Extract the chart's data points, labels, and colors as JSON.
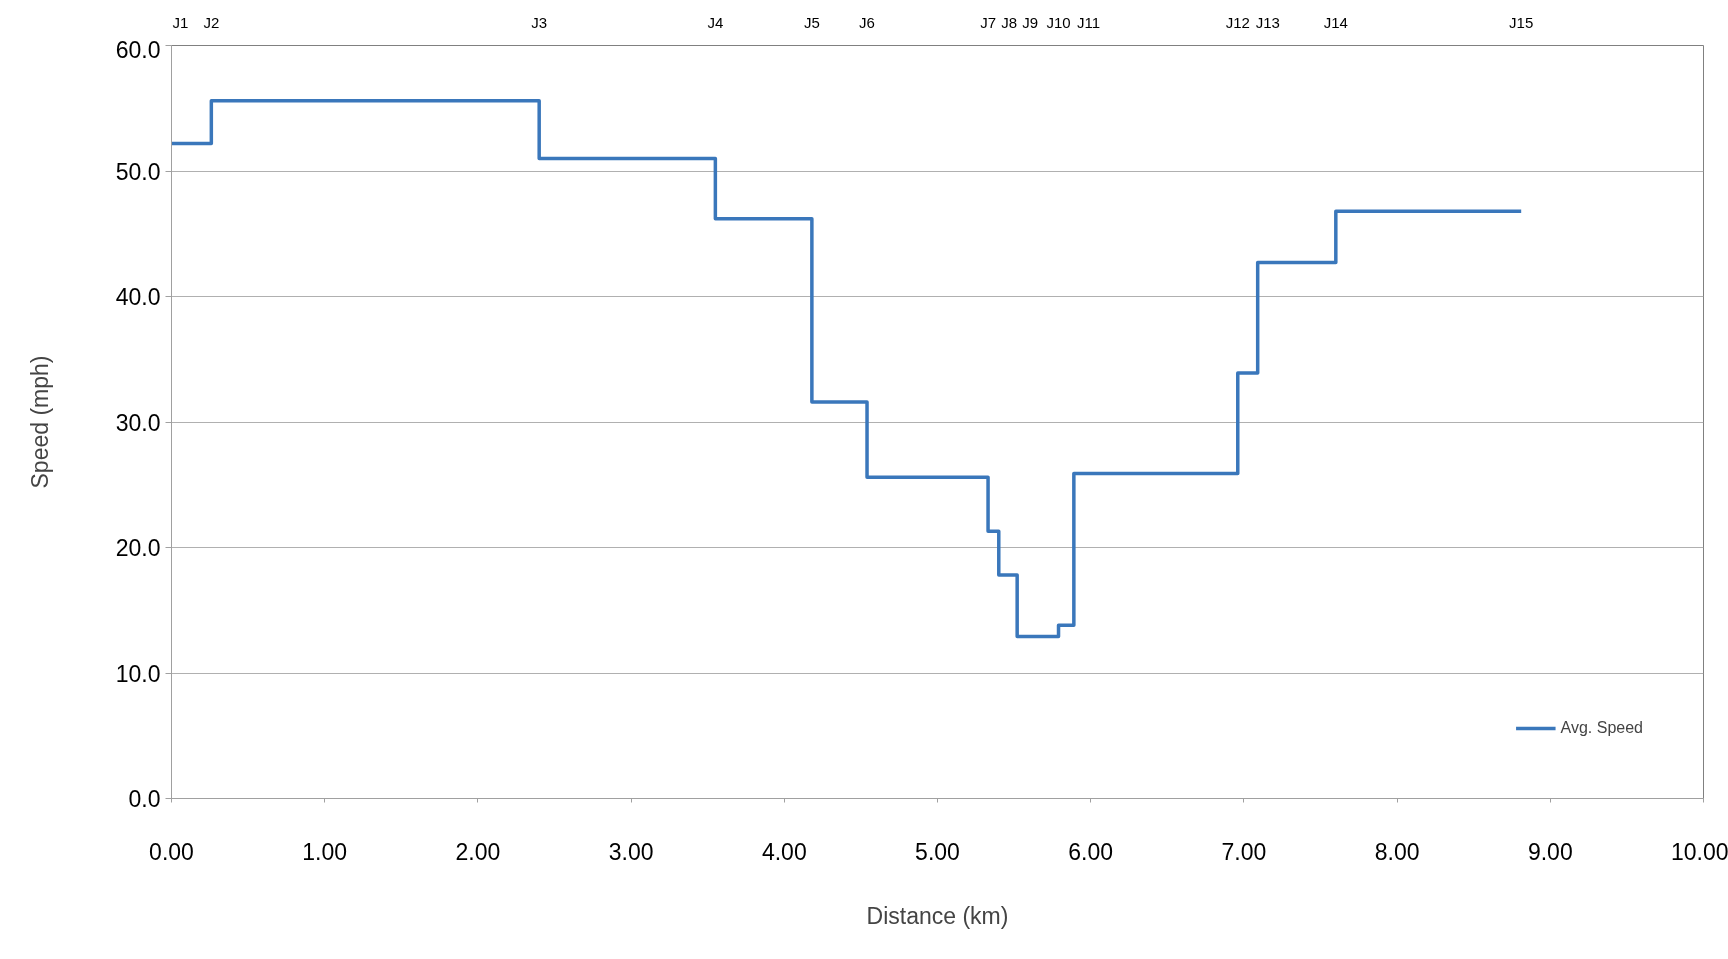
{
  "chart_data": {
    "type": "step",
    "xlabel": "Distance (km)",
    "ylabel": "Speed (mph)",
    "x": [
      0,
      0.26,
      2.4,
      3.55,
      4.18,
      4.54,
      5.33,
      5.4,
      5.52,
      5.79,
      5.89,
      6.96,
      7.09,
      7.6,
      8.81
    ],
    "series": [
      {
        "name": "Avg. Speed",
        "color": "#3a77bb",
        "values": [
          52.2,
          55.6,
          51.0,
          46.2,
          31.6,
          25.6,
          21.3,
          17.8,
          12.9,
          13.8,
          25.9,
          33.9,
          42.7,
          46.8,
          46.8
        ]
      }
    ],
    "xlim": [
      0,
      10
    ],
    "xticks": [
      {
        "value": 0,
        "label": "0.00"
      },
      {
        "value": 1,
        "label": "1.00"
      },
      {
        "value": 2,
        "label": "2.00"
      },
      {
        "value": 3,
        "label": "3.00"
      },
      {
        "value": 4,
        "label": "4.00"
      },
      {
        "value": 5,
        "label": "5.00"
      },
      {
        "value": 6,
        "label": "6.00"
      },
      {
        "value": 7,
        "label": "7.00"
      },
      {
        "value": 8,
        "label": "8.00"
      },
      {
        "value": 9,
        "label": "9.00"
      },
      {
        "value": 10,
        "label": "10.00"
      }
    ],
    "ylim": [
      0,
      60
    ],
    "yticks": [
      {
        "value": 0,
        "label": "0.0"
      },
      {
        "value": 10,
        "label": "10.0"
      },
      {
        "value": 20,
        "label": "20.0"
      },
      {
        "value": 30,
        "label": "30.0"
      },
      {
        "value": 40,
        "label": "40.0"
      },
      {
        "value": 50,
        "label": "50.0"
      },
      {
        "value": 60,
        "label": "60.0"
      }
    ],
    "annotations": [
      "J1",
      "J2",
      "J3",
      "J4",
      "J5",
      "J6",
      "J7",
      "J8",
      "J9",
      "J10",
      "J11",
      "J12",
      "J13",
      "J14",
      "J15"
    ],
    "grid": "y",
    "legend": "bottom right",
    "line_style": "solid",
    "marker": "none"
  }
}
